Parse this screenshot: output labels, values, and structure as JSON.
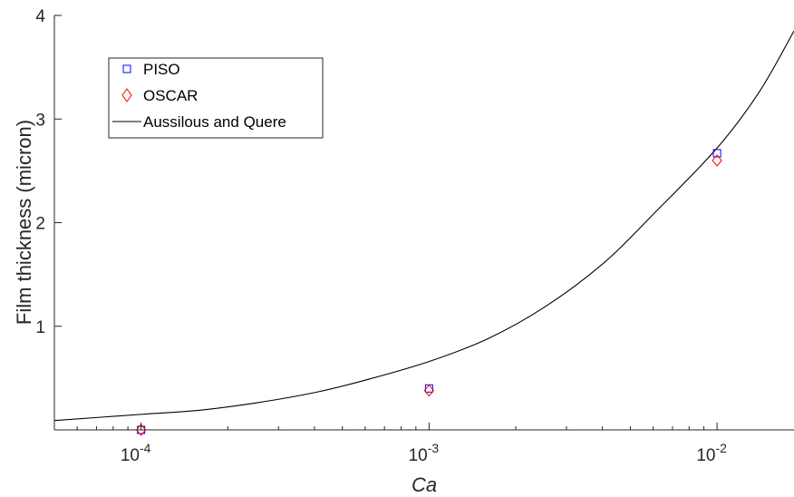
{
  "chart_data": {
    "type": "scatter",
    "xlabel": "Ca",
    "ylabel": "Film thickness (micron)",
    "x_scale": "log",
    "xlim": [
      5e-05,
      0.0185
    ],
    "ylim": [
      0,
      4
    ],
    "x_ticks": [
      {
        "value": 0.0001,
        "base": "10",
        "exp": "-4"
      },
      {
        "value": 0.001,
        "base": "10",
        "exp": "-3"
      },
      {
        "value": 0.01,
        "base": "10",
        "exp": "-2"
      }
    ],
    "y_ticks": [
      1,
      2,
      3,
      4
    ],
    "grid": false,
    "legend_placement": "top-left",
    "series": [
      {
        "name": "PISO",
        "kind": "markers",
        "marker": "square",
        "color": "#0000ff",
        "x": [
          0.0001,
          0.001,
          0.01
        ],
        "y": [
          0.0,
          0.4,
          2.67
        ]
      },
      {
        "name": "OSCAR",
        "kind": "markers",
        "marker": "diamond",
        "color": "#ff0000",
        "x": [
          0.0001,
          0.001,
          0.01
        ],
        "y": [
          0.0,
          0.38,
          2.6
        ]
      },
      {
        "name": "Aussilous and Quere",
        "kind": "line",
        "color": "#000000",
        "x": [
          5e-05,
          0.0001,
          0.00016,
          0.00025,
          0.0004,
          0.0006,
          0.001,
          0.0016,
          0.0025,
          0.004,
          0.006,
          0.01,
          0.014,
          0.0185
        ],
        "y": [
          0.09,
          0.15,
          0.19,
          0.26,
          0.36,
          0.48,
          0.66,
          0.88,
          1.18,
          1.6,
          2.08,
          2.72,
          3.26,
          3.85
        ]
      }
    ]
  }
}
